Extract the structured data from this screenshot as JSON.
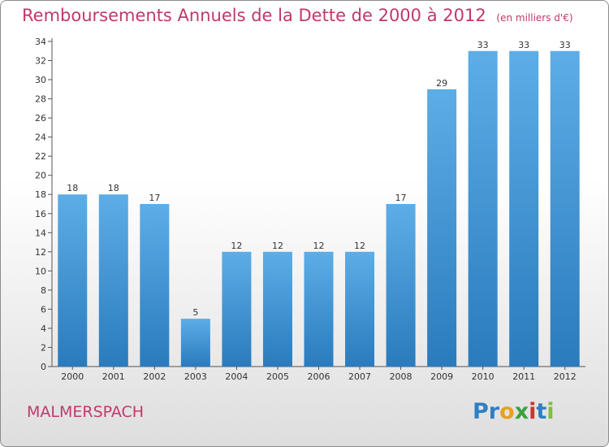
{
  "chart_data": {
    "type": "bar",
    "title": "Remboursements Annuels de la Dette de 2000 à 2012",
    "subtitle": "(en milliers d'€)",
    "categories": [
      "2000",
      "2001",
      "2002",
      "2003",
      "2004",
      "2005",
      "2006",
      "2007",
      "2008",
      "2009",
      "2010",
      "2011",
      "2012"
    ],
    "values": [
      18,
      18,
      17,
      5,
      12,
      12,
      12,
      12,
      17,
      29,
      33,
      33,
      33
    ],
    "ylim": [
      0,
      34
    ],
    "yticks": [
      0,
      2,
      4,
      6,
      8,
      10,
      12,
      14,
      16,
      18,
      20,
      22,
      24,
      26,
      28,
      30,
      32,
      34
    ],
    "grid": false,
    "bar_color_top": "#5dade7",
    "bar_color_bottom": "#2a7bbd"
  },
  "footer": {
    "town": "MALMERSPACH",
    "logo_letters": [
      {
        "ch": "P",
        "color": "#2f7fc1"
      },
      {
        "ch": "r",
        "color": "#2f7fc1"
      },
      {
        "ch": "o",
        "color": "#e8a01e"
      },
      {
        "ch": "x",
        "color": "#3aa23a"
      },
      {
        "ch": "i",
        "color": "#d3322e"
      },
      {
        "ch": "t",
        "color": "#2f7fc1"
      },
      {
        "ch": "i",
        "color": "#7fbf3a"
      }
    ]
  },
  "colors": {
    "accent": "#c0396b"
  }
}
